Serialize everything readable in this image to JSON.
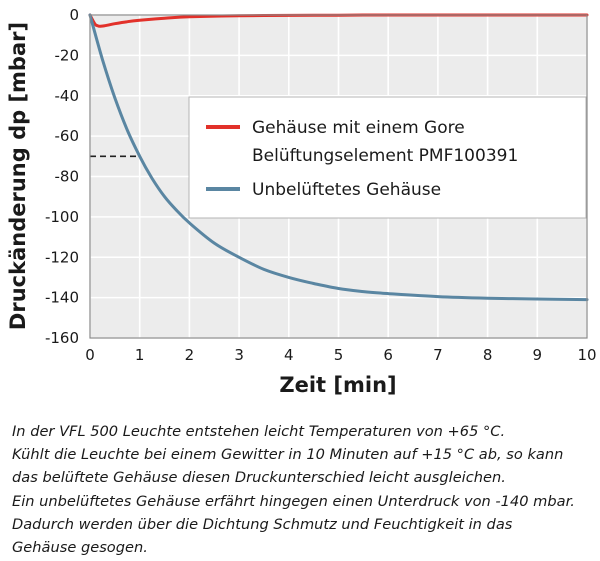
{
  "chart_data": {
    "type": "line",
    "xlabel": "Zeit [min]",
    "ylabel": "Druckänderung dp [mbar]",
    "xlim": [
      0,
      10
    ],
    "ylim": [
      -160,
      0
    ],
    "x_ticks": [
      "0",
      "1",
      "2",
      "3",
      "4",
      "5",
      "6",
      "7",
      "8",
      "9",
      "10"
    ],
    "y_ticks": [
      "0",
      "-20",
      "-40",
      "-60",
      "-80",
      "-100",
      "-120",
      "-140",
      "-160"
    ],
    "grid": true,
    "legend_position": "center-right",
    "series": [
      {
        "name_lines": [
          "Gehäuse mit einem Gore",
          "Belüftungselement PMF100391"
        ],
        "color": "#e2312a",
        "points": [
          [
            0,
            0
          ],
          [
            0.1,
            -4.5
          ],
          [
            0.15,
            -5.3
          ],
          [
            0.2,
            -5.6
          ],
          [
            0.3,
            -5.3
          ],
          [
            0.5,
            -4.3
          ],
          [
            0.75,
            -3.3
          ],
          [
            1,
            -2.6
          ],
          [
            1.5,
            -1.6
          ],
          [
            2,
            -0.9
          ],
          [
            3,
            -0.4
          ],
          [
            4,
            -0.2
          ],
          [
            5,
            -0.1
          ],
          [
            6,
            0
          ],
          [
            7,
            0
          ],
          [
            8,
            0
          ],
          [
            9,
            0
          ],
          [
            10,
            0
          ]
        ]
      },
      {
        "name": "Unbelüftetes Gehäuse",
        "color": "#5a86a2",
        "points": [
          [
            0,
            0
          ],
          [
            0.25,
            -22
          ],
          [
            0.5,
            -41
          ],
          [
            0.75,
            -57
          ],
          [
            1,
            -70
          ],
          [
            1.25,
            -81
          ],
          [
            1.5,
            -90
          ],
          [
            1.75,
            -97
          ],
          [
            2,
            -103
          ],
          [
            2.5,
            -113
          ],
          [
            3,
            -120
          ],
          [
            3.5,
            -126
          ],
          [
            4,
            -130
          ],
          [
            4.5,
            -133
          ],
          [
            5,
            -135.5
          ],
          [
            5.5,
            -137
          ],
          [
            6,
            -138
          ],
          [
            7,
            -139.5
          ],
          [
            8,
            -140.3
          ],
          [
            9,
            -140.7
          ],
          [
            10,
            -141
          ]
        ]
      }
    ],
    "reference_line": {
      "y": -70,
      "x_range": [
        0,
        1
      ],
      "style": "dashed"
    }
  },
  "caption_lines": [
    "In der VFL 500 Leuchte entstehen leicht Temperaturen von +65 °C.",
    "Kühlt die Leuchte bei einem Gewitter in 10 Minuten auf +15 °C ab, so kann",
    "das belüftete Gehäuse diesen Druckunterschied leicht ausgleichen.",
    "Ein unbelüftetes Gehäuse erfährt hingegen einen Unterdruck von -140 mbar.",
    "Dadurch werden über die Dichtung Schmutz und Feuchtigkeit in das",
    "Gehäuse gesogen."
  ]
}
